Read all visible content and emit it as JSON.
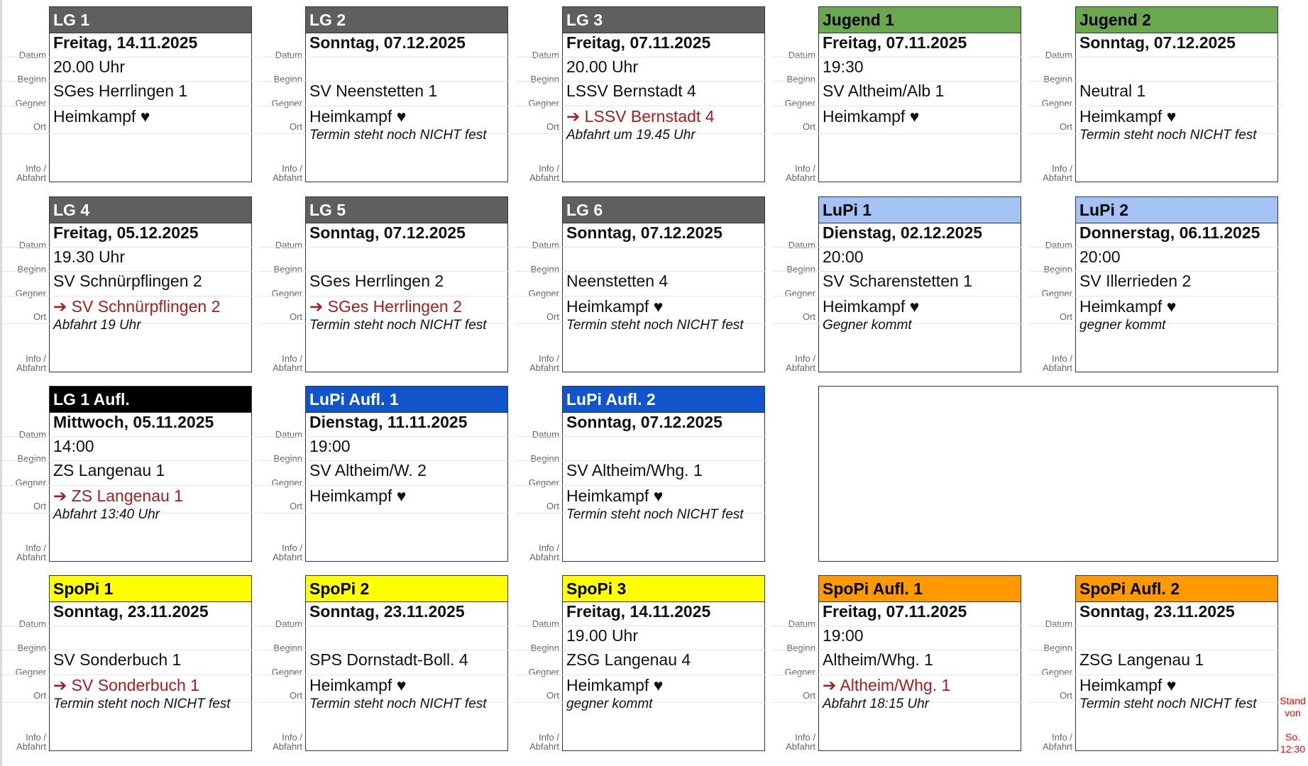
{
  "labels": {
    "datum": "Datum",
    "beginn": "Beginn",
    "gegner": "Gegner",
    "ort": "Ort",
    "info": "Info /",
    "abfahrt": "Abfahrt"
  },
  "colors": {
    "gray": "#5f5f5f",
    "green": "#6aa84f",
    "lightblue": "#a4c2f4",
    "black": "#000000",
    "blue": "#1155cc",
    "yellow": "#ffff00",
    "orange": "#ff9900",
    "away_red": "#a51d1d",
    "stand_red": "#ff0000"
  },
  "teams": [
    {
      "name": "LG 1",
      "header": "gray",
      "datum": "Freitag, 14.11.2025",
      "beginn": "20.00 Uhr",
      "gegner": "SGes Herrlingen 1",
      "ort": "Heimkampf ♥",
      "away": false,
      "info": ""
    },
    {
      "name": "LG 2",
      "header": "gray",
      "datum": "Sonntag, 07.12.2025",
      "beginn": "",
      "gegner": "SV Neenstetten 1",
      "ort": "Heimkampf ♥",
      "away": false,
      "info": "Termin steht noch NICHT fest"
    },
    {
      "name": "LG 3",
      "header": "gray",
      "datum": "Freitag, 07.11.2025",
      "beginn": "20.00 Uhr",
      "gegner": "LSSV Bernstadt 4",
      "ort": "➔ LSSV Bernstadt 4",
      "away": true,
      "info": "Abfahrt um 19.45 Uhr"
    },
    {
      "name": "Jugend 1",
      "header": "green",
      "datum": "Freitag, 07.11.2025",
      "beginn": "19:30",
      "gegner": "SV Altheim/Alb 1",
      "ort": "Heimkampf ♥",
      "away": false,
      "info": ""
    },
    {
      "name": "Jugend 2",
      "header": "green",
      "datum": "Sonntag, 07.12.2025",
      "beginn": "",
      "gegner": "Neutral 1",
      "ort": "Heimkampf ♥",
      "away": false,
      "info": "Termin steht noch NICHT fest"
    },
    {
      "name": "LG 4",
      "header": "gray",
      "datum": "Freitag, 05.12.2025",
      "beginn": "19.30 Uhr",
      "gegner": "SV Schnürpflingen 2",
      "ort": "➔ SV Schnürpflingen 2",
      "away": true,
      "info": "Abfahrt 19 Uhr"
    },
    {
      "name": "LG 5",
      "header": "gray",
      "datum": "Sonntag, 07.12.2025",
      "beginn": "",
      "gegner": "SGes Herrlingen 2",
      "ort": "➔ SGes Herrlingen 2",
      "away": true,
      "info": "Termin steht noch NICHT fest"
    },
    {
      "name": "LG 6",
      "header": "gray",
      "datum": "Sonntag, 07.12.2025",
      "beginn": "",
      "gegner": "Neenstetten 4",
      "ort": "Heimkampf ♥",
      "away": false,
      "info": "Termin steht noch NICHT fest"
    },
    {
      "name": "LuPi 1",
      "header": "lightblue",
      "datum": "Dienstag, 02.12.2025",
      "beginn": "20:00",
      "gegner": "SV Scharenstetten 1",
      "ort": "Heimkampf ♥",
      "away": false,
      "info": "Gegner kommt"
    },
    {
      "name": "LuPi 2",
      "header": "lightblue",
      "datum": "Donnerstag, 06.11.2025",
      "beginn": "20:00",
      "gegner": "SV Illerrieden 2",
      "ort": "Heimkampf ♥",
      "away": false,
      "info": "gegner kommt"
    },
    {
      "name": "LG 1 Aufl.",
      "header": "black",
      "datum": "Mittwoch, 05.11.2025",
      "beginn": "14:00",
      "gegner": "ZS Langenau 1",
      "ort": "➔ ZS Langenau 1",
      "away": true,
      "info": "Abfahrt 13:40 Uhr"
    },
    {
      "name": "LuPi Aufl. 1",
      "header": "blue",
      "datum": "Dienstag, 11.11.2025",
      "beginn": "19:00",
      "gegner": "SV Altheim/W. 2",
      "ort": "Heimkampf ♥",
      "away": false,
      "info": ""
    },
    {
      "name": "LuPi Aufl. 2",
      "header": "blue",
      "datum": "Sonntag, 07.12.2025",
      "beginn": "",
      "gegner": "SV Altheim/Whg. 1",
      "ort": "Heimkampf ♥",
      "away": false,
      "info": "Termin steht noch NICHT fest"
    },
    {
      "name": "SpoPi 1",
      "header": "yellow",
      "datum": "Sonntag, 23.11.2025",
      "beginn": "",
      "gegner": "SV Sonderbuch 1",
      "ort": "➔ SV Sonderbuch 1",
      "away": true,
      "info": "Termin steht noch NICHT fest"
    },
    {
      "name": "SpoPi 2",
      "header": "yellow",
      "datum": "Sonntag, 23.11.2025",
      "beginn": "",
      "gegner": "SPS Dornstadt-Boll. 4",
      "ort": "Heimkampf ♥",
      "away": false,
      "info": "Termin steht noch NICHT fest"
    },
    {
      "name": "SpoPi 3",
      "header": "yellow",
      "datum": "Freitag, 14.11.2025",
      "beginn": "19.00 Uhr",
      "gegner": "ZSG Langenau 4",
      "ort": "Heimkampf ♥",
      "away": false,
      "info": "gegner kommt"
    },
    {
      "name": "SpoPi Aufl. 1",
      "header": "orange",
      "datum": "Freitag, 07.11.2025",
      "beginn": "19:00",
      "gegner": "Altheim/Whg. 1",
      "ort": "➔ Altheim/Whg. 1",
      "away": true,
      "info": "Abfahrt 18:15 Uhr"
    },
    {
      "name": "SpoPi Aufl. 2",
      "header": "orange",
      "datum": "Sonntag, 23.11.2025",
      "beginn": "",
      "gegner": "ZSG Langenau 1",
      "ort": "Heimkampf ♥",
      "away": false,
      "info": "Termin steht noch NICHT fest"
    }
  ],
  "stand": {
    "line1": "Stand",
    "line2": "von",
    "line3": "So.",
    "line4": "12:30"
  }
}
